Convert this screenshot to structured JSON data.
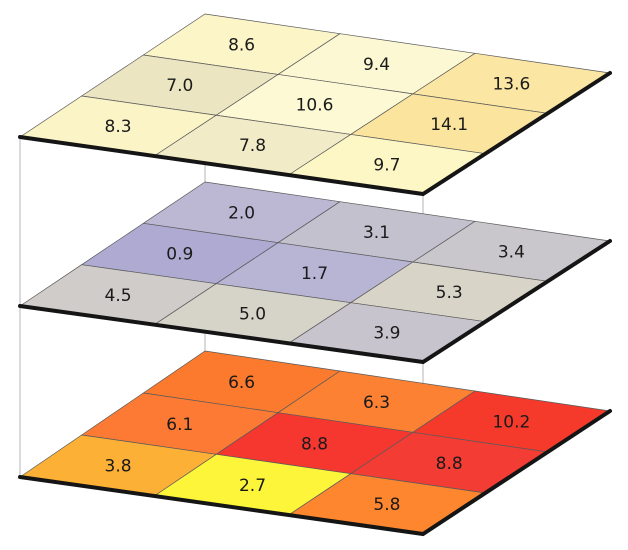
{
  "chart_data": {
    "type": "heatmap",
    "description_levels": "three stacked 3x3 map layers, rows listed back to front, columns left to right",
    "layers": [
      {
        "name": "top",
        "values": [
          [
            8.6,
            9.4,
            13.6
          ],
          [
            7.0,
            10.6,
            14.1
          ],
          [
            8.3,
            7.8,
            9.7
          ]
        ],
        "labels": [
          [
            "8.6",
            "9.4",
            "13.6"
          ],
          [
            "7.0",
            "10.6",
            "14.1"
          ],
          [
            "8.3",
            "7.8",
            "9.7"
          ]
        ],
        "colors": [
          [
            "#fbf5c8",
            "#fcf8d3",
            "#fbe6a4"
          ],
          [
            "#ece5c2",
            "#fcf9d4",
            "#fbe49e"
          ],
          [
            "#fbf4c6",
            "#f1ecc7",
            "#fdf7c6"
          ]
        ]
      },
      {
        "name": "middle",
        "values": [
          [
            2.0,
            3.1,
            3.4
          ],
          [
            0.9,
            1.7,
            5.3
          ],
          [
            4.5,
            5.0,
            3.9
          ]
        ],
        "labels": [
          [
            "2.0",
            "3.1",
            "3.4"
          ],
          [
            "0.9",
            "1.7",
            "5.3"
          ],
          [
            "4.5",
            "5.0",
            "3.9"
          ]
        ],
        "colors": [
          [
            "#bcb8d4",
            "#c4c1cf",
            "#c9c6cc"
          ],
          [
            "#aeaad2",
            "#b8b4d4",
            "#d8d4c8"
          ],
          [
            "#cfccc9",
            "#d6d3c8",
            "#c8c4cd"
          ]
        ]
      },
      {
        "name": "bottom",
        "values": [
          [
            6.6,
            6.3,
            10.2
          ],
          [
            6.1,
            8.8,
            8.8
          ],
          [
            3.8,
            2.7,
            5.8
          ]
        ],
        "labels": [
          [
            "6.6",
            "6.3",
            "10.2"
          ],
          [
            "6.1",
            "8.8",
            "8.8"
          ],
          [
            "3.8",
            "2.7",
            "5.8"
          ]
        ],
        "colors": [
          [
            "#fc7a2e",
            "#fc8133",
            "#f53a2c"
          ],
          [
            "#fc7a34",
            "#f53730",
            "#f23c34"
          ],
          [
            "#fdb036",
            "#fcf53a",
            "#fd862f"
          ]
        ]
      }
    ]
  }
}
